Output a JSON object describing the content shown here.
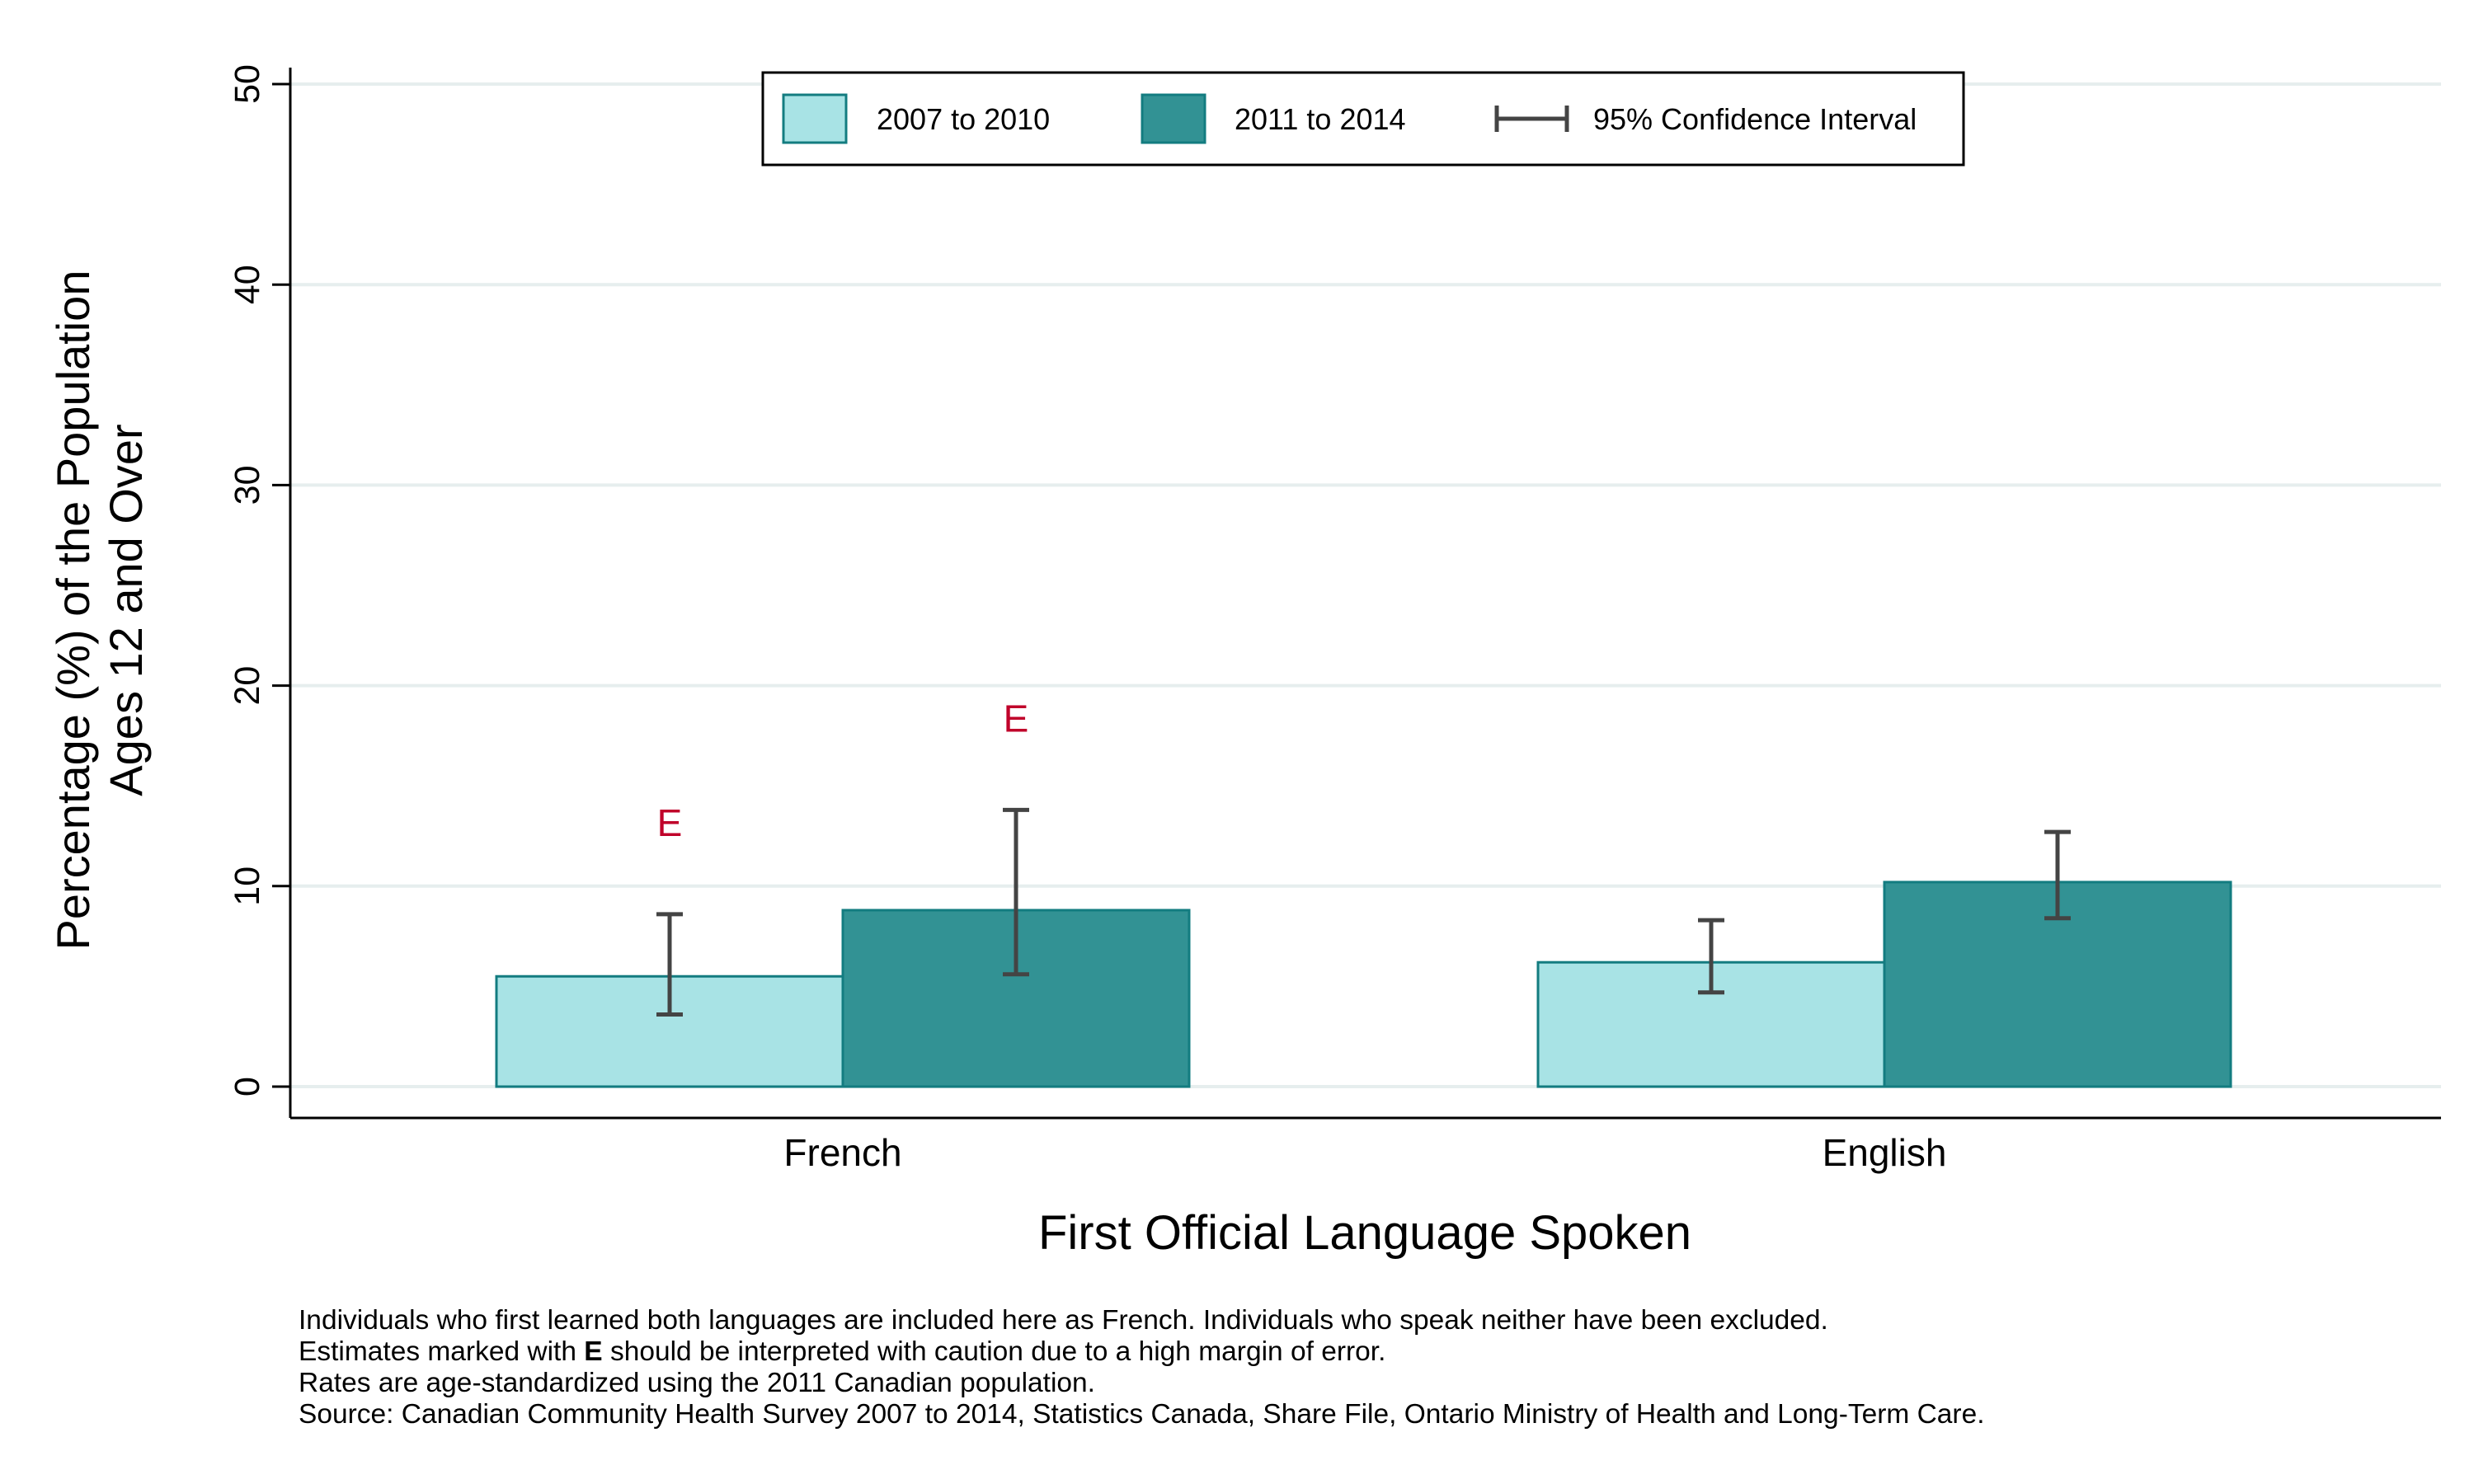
{
  "chart_data": {
    "type": "bar",
    "title": "",
    "xlabel": "First Official Language Spoken",
    "ylabel_lines": [
      "Percentage (%) of the Population",
      "Ages 12 and Over"
    ],
    "ylim": [
      0,
      50
    ],
    "yticks": [
      "0",
      "10",
      "20",
      "30",
      "40",
      "50"
    ],
    "grid": true,
    "legend_position": "top",
    "categories": [
      "French",
      "English"
    ],
    "series": [
      {
        "name": "2007 to 2010",
        "color": "#a8e3e5",
        "values": [
          5.5,
          6.2
        ],
        "ci_low": [
          3.6,
          4.7
        ],
        "ci_high": [
          8.6,
          8.3
        ],
        "flags": [
          "E",
          ""
        ]
      },
      {
        "name": "2011 to 2014",
        "color": "#329294",
        "values": [
          8.8,
          10.2
        ],
        "ci_low": [
          5.6,
          8.4
        ],
        "ci_high": [
          13.8,
          12.7
        ],
        "flags": [
          "E",
          ""
        ]
      }
    ],
    "ci_legend_label": "95% Confidence Interval",
    "flag_color": "#c0002a"
  },
  "footnotes": {
    "line1": "Individuals who first learned both languages are included here as French.  Individuals who speak neither have been excluded.",
    "line2_pre": "Estimates marked with ",
    "line2_bold": "E",
    "line2_post": " should be interpreted with caution due to a high margin of error.",
    "line3": "Rates are age-standardized using the 2011 Canadian population.",
    "line4": "Source: Canadian Community Health Survey 2007 to 2014, Statistics Canada, Share File, Ontario Ministry of Health and Long-Term Care."
  }
}
